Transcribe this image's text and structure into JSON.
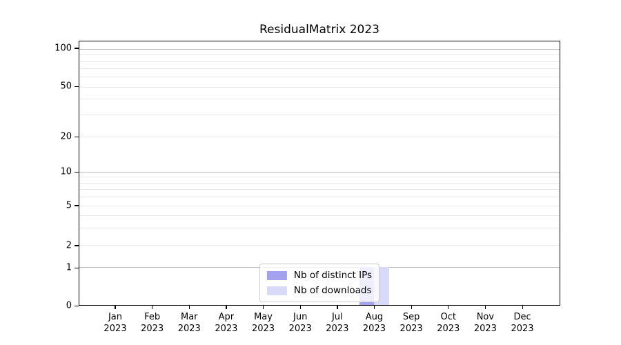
{
  "chart_data": {
    "type": "bar",
    "title": "ResidualMatrix 2023",
    "categories": [
      "Jan 2023",
      "Feb 2023",
      "Mar 2023",
      "Apr 2023",
      "May 2023",
      "Jun 2023",
      "Jul 2023",
      "Aug 2023",
      "Sep 2023",
      "Oct 2023",
      "Nov 2023",
      "Dec 2023"
    ],
    "x_tick_line1": [
      "Jan",
      "Feb",
      "Mar",
      "Apr",
      "May",
      "Jun",
      "Jul",
      "Aug",
      "Sep",
      "Oct",
      "Nov",
      "Dec"
    ],
    "x_tick_line2": "2023",
    "series": [
      {
        "name": "Nb of distinct IPs",
        "color": "#a2a2ee",
        "values": [
          0,
          0,
          0,
          0,
          0,
          0,
          0,
          1,
          0,
          0,
          0,
          0
        ]
      },
      {
        "name": "Nb of downloads",
        "color": "#d9d9f8",
        "values": [
          0,
          0,
          0,
          0,
          0,
          0,
          0,
          1,
          0,
          0,
          0,
          0
        ]
      }
    ],
    "yscale": "log (linear below 1)",
    "ylim": [
      0,
      110
    ],
    "ytick_values": [
      0,
      1,
      2,
      5,
      10,
      20,
      50,
      100
    ],
    "ytick_labels": [
      "0",
      "1",
      "2",
      "5",
      "10",
      "20",
      "50",
      "100"
    ],
    "minor_grid_values": [
      3,
      4,
      6,
      7,
      8,
      9,
      30,
      40,
      60,
      70,
      80,
      90
    ],
    "major_grid_values": [
      1,
      10,
      100
    ],
    "grid": "horizontal only",
    "legend_position": "lower center"
  },
  "colors": {
    "grid_minor": "#e7e7e7",
    "grid_major": "#bababa",
    "spine": "#000000",
    "text": "#000000",
    "background": "#ffffff"
  }
}
